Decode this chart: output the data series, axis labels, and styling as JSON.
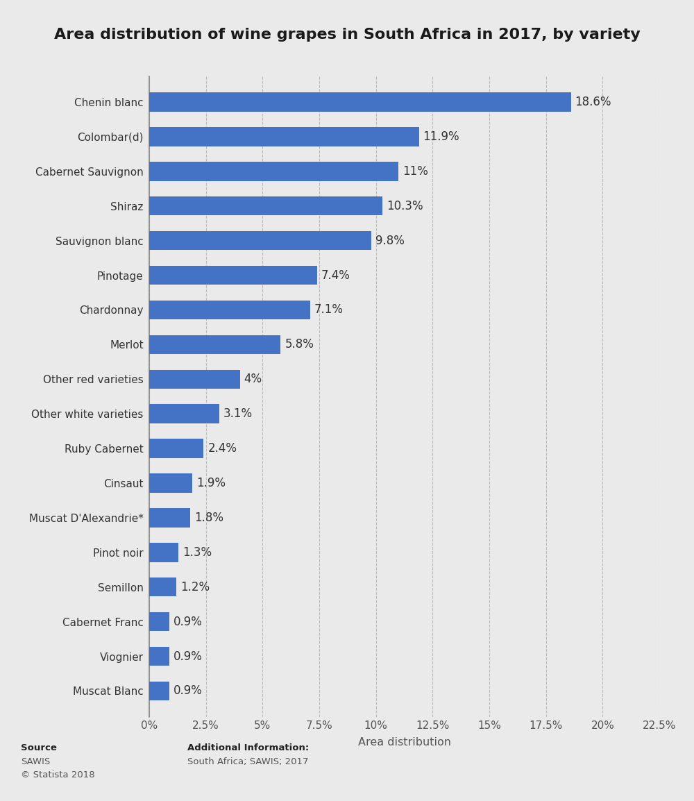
{
  "title": "Area distribution of wine grapes in South Africa in 2017, by variety",
  "categories": [
    "Chenin blanc",
    "Colombar(d)",
    "Cabernet Sauvignon",
    "Shiraz",
    "Sauvignon blanc",
    "Pinotage",
    "Chardonnay",
    "Merlot",
    "Other red varieties",
    "Other white varieties",
    "Ruby Cabernet",
    "Cinsaut",
    "Muscat D'Alexandrie*",
    "Pinot noir",
    "Semillon",
    "Cabernet Franc",
    "Viognier",
    "Muscat Blanc"
  ],
  "values": [
    18.6,
    11.9,
    11.0,
    10.3,
    9.8,
    7.4,
    7.1,
    5.8,
    4.0,
    3.1,
    2.4,
    1.9,
    1.8,
    1.3,
    1.2,
    0.9,
    0.9,
    0.9
  ],
  "labels": [
    "18.6%",
    "11.9%",
    "11%",
    "10.3%",
    "9.8%",
    "7.4%",
    "7.1%",
    "5.8%",
    "4%",
    "3.1%",
    "2.4%",
    "1.9%",
    "1.8%",
    "1.3%",
    "1.2%",
    "0.9%",
    "0.9%",
    "0.9%"
  ],
  "bar_color": "#4472C4",
  "background_color": "#eaeaea",
  "plot_background_color": "#eaeaea",
  "xlabel": "Area distribution",
  "xlim": [
    0,
    22.5
  ],
  "xticks": [
    0,
    2.5,
    5.0,
    7.5,
    10.0,
    12.5,
    15.0,
    17.5,
    20.0,
    22.5
  ],
  "xticklabels": [
    "0%",
    "2.5%",
    "5%",
    "7.5%",
    "10%",
    "12.5%",
    "15%",
    "17.5%",
    "20%",
    "22.5%"
  ],
  "title_fontsize": 16,
  "label_fontsize": 11.5,
  "tick_fontsize": 11,
  "bar_label_fontsize": 12,
  "source_text": "Source",
  "source_name": "SAWIS",
  "source_copy": "© Statista 2018",
  "add_info_label": "Additional Information:",
  "add_info_value": "South Africa; SAWIS; 2017"
}
